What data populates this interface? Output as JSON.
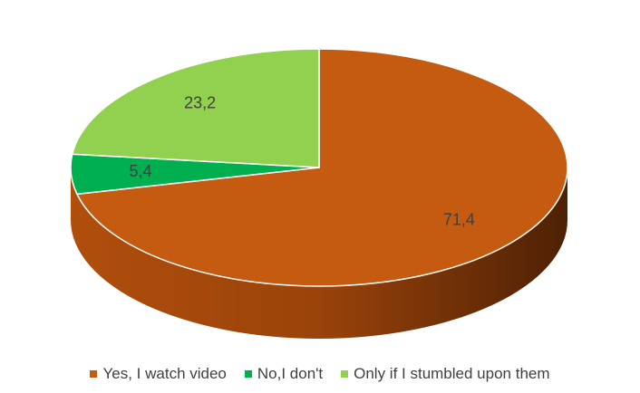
{
  "chart_data": {
    "type": "pie",
    "style": "3d",
    "categories": [
      "Yes, I watch video",
      "No,I don't",
      "Only if I stumbled upon them"
    ],
    "values": [
      71.4,
      5.4,
      23.2
    ],
    "data_labels": [
      "71,4",
      "5,4",
      "23,2"
    ],
    "colors": [
      "#c55a11",
      "#00b050",
      "#92d050"
    ],
    "legend_position": "bottom"
  }
}
